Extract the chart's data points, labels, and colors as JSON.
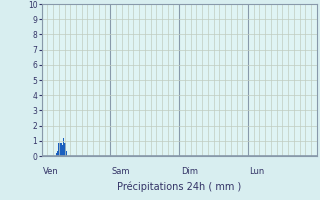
{
  "title": "Précipitations 24h ( mm )",
  "background_color": "#d8eef0",
  "plot_bg_color": "#dff4f4",
  "bar_color": "#1a5fbf",
  "ylim": [
    0,
    10
  ],
  "yticks": [
    0,
    1,
    2,
    3,
    4,
    5,
    6,
    7,
    8,
    9,
    10
  ],
  "minor_grid_color": "#c0ccc0",
  "major_grid_color": "#8899aa",
  "day_labels": [
    "Ven",
    "Sam",
    "Dim",
    "Lun"
  ],
  "day_positions": [
    0,
    72,
    144,
    216
  ],
  "total_hours": 288,
  "bar_data": [
    {
      "hour": 16,
      "value": 0.2
    },
    {
      "hour": 17,
      "value": 0.3
    },
    {
      "hour": 18,
      "value": 0.85
    },
    {
      "hour": 19,
      "value": 0.85
    },
    {
      "hour": 20,
      "value": 0.85
    },
    {
      "hour": 21,
      "value": 0.85
    },
    {
      "hour": 22,
      "value": 0.75
    },
    {
      "hour": 23,
      "value": 1.2
    },
    {
      "hour": 24,
      "value": 0.85
    },
    {
      "hour": 25,
      "value": 0.85
    },
    {
      "hour": 26,
      "value": 0.35
    }
  ]
}
